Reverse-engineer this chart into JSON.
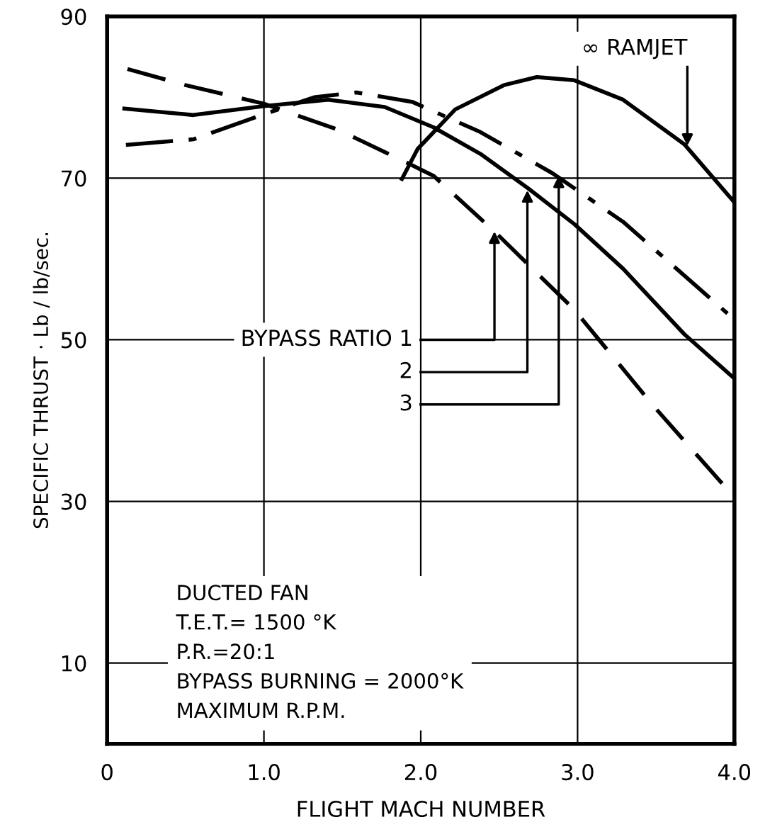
{
  "chart_data": {
    "type": "line",
    "xlabel": "FLIGHT MACH NUMBER",
    "ylabel": "SPECIFIC THRUST · Lb / lb/sec.",
    "xlim": [
      0,
      4
    ],
    "ylim": [
      0,
      90
    ],
    "xticks": [
      0,
      {
        "value": 1,
        "label": "1.0"
      },
      {
        "value": 2,
        "label": "2.0"
      },
      {
        "value": 3,
        "label": "3.0"
      },
      {
        "value": 4,
        "label": "4.0"
      }
    ],
    "yticks": [
      10,
      30,
      50,
      70,
      90
    ],
    "grid": true,
    "color": "#000000",
    "series": [
      {
        "color": "#000000",
        "line_style": "dashed",
        "x": [
          0.13,
          0.5,
          1.0,
          1.47,
          1.86,
          2.08,
          2.47,
          2.98,
          3.48,
          4.0
        ],
        "values": [
          83.5,
          81.5,
          79.2,
          76,
          72.4,
          70.3,
          63.4,
          53.7,
          41.9,
          30.5
        ]
      },
      {
        "color": "#000000",
        "line_style": "solid",
        "x": [
          0.11,
          0.55,
          1.0,
          1.41,
          1.77,
          2.08,
          2.38,
          2.68,
          2.98,
          3.29,
          3.68,
          4.0
        ],
        "values": [
          78.6,
          77.8,
          78.9,
          79.7,
          78.8,
          76.3,
          73,
          68.8,
          64.3,
          58.8,
          50.7,
          45.2
        ]
      },
      {
        "color": "#000000",
        "line_style": "dashdot",
        "x": [
          0.12,
          0.55,
          1.0,
          1.32,
          1.59,
          1.95,
          2.38,
          2.84,
          3.29,
          4.0
        ],
        "values": [
          74.1,
          74.8,
          77.9,
          80,
          80.6,
          79.4,
          75.7,
          70.6,
          64.6,
          52.5
        ]
      },
      {
        "color": "#000000",
        "line_style": "solid",
        "x": [
          1.88,
          1.98,
          2.22,
          2.53,
          2.74,
          2.98,
          3.29,
          3.68,
          4.0
        ],
        "values": [
          69.9,
          73.6,
          78.5,
          81.5,
          82.5,
          82.1,
          79.7,
          74.2,
          67
        ]
      }
    ],
    "annotations": [
      {
        "text": "∞ RAMJET",
        "x": 3.7,
        "y": 74
      },
      {
        "text": "BYPASS RATIO 1",
        "x": 2.47,
        "y": 63.4
      },
      {
        "text": "2",
        "x": 2.68,
        "y": 68.5
      },
      {
        "text": "3",
        "x": 2.88,
        "y": 70.3
      },
      "DUCTED FAN\nT.E.T.= 1500 °K\nP.R.=20:1\nBYPASS BURNING = 2000°K\nMAXIMUM R.P.M."
    ]
  }
}
